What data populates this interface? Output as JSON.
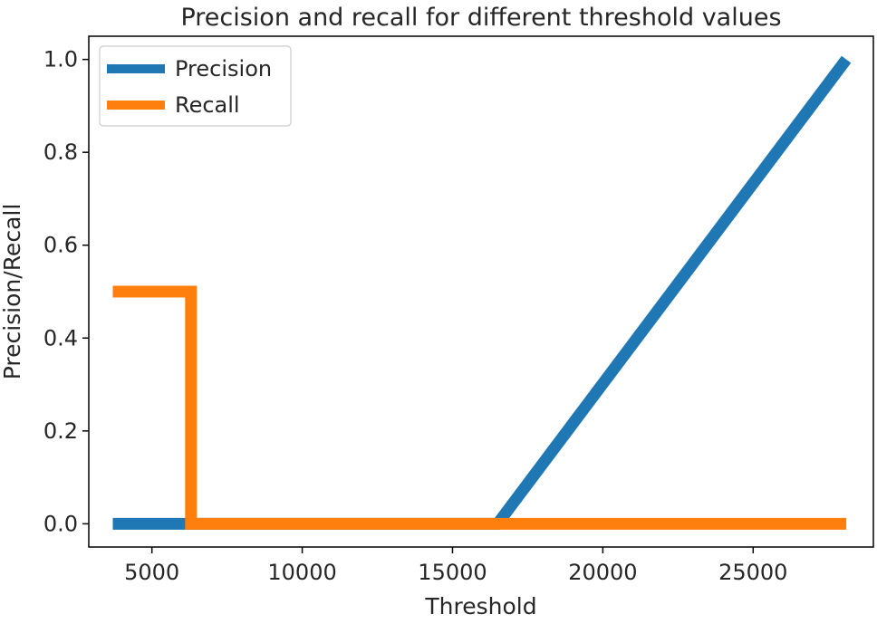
{
  "chart_data": {
    "type": "line",
    "title": "Precision and recall for different threshold values",
    "xlabel": "Threshold",
    "ylabel": "Precision/Recall",
    "xlim": [
      2900,
      29000
    ],
    "ylim": [
      -0.05,
      1.05
    ],
    "x_ticks": [
      5000,
      10000,
      15000,
      20000,
      25000
    ],
    "y_ticks": [
      0.0,
      0.2,
      0.4,
      0.6,
      0.8,
      1.0
    ],
    "grid": false,
    "legend": {
      "position": "top-left"
    },
    "series": [
      {
        "name": "Precision",
        "color": "#1f77b4",
        "x": [
          3700,
          6400,
          16500,
          28100
        ],
        "y": [
          0.0,
          0.0,
          0.0,
          1.0
        ]
      },
      {
        "name": "Recall",
        "color": "#ff7f0e",
        "x": [
          3700,
          6300,
          6300,
          16500,
          28100
        ],
        "y": [
          0.5,
          0.5,
          0.0,
          0.0,
          0.0
        ]
      }
    ]
  }
}
